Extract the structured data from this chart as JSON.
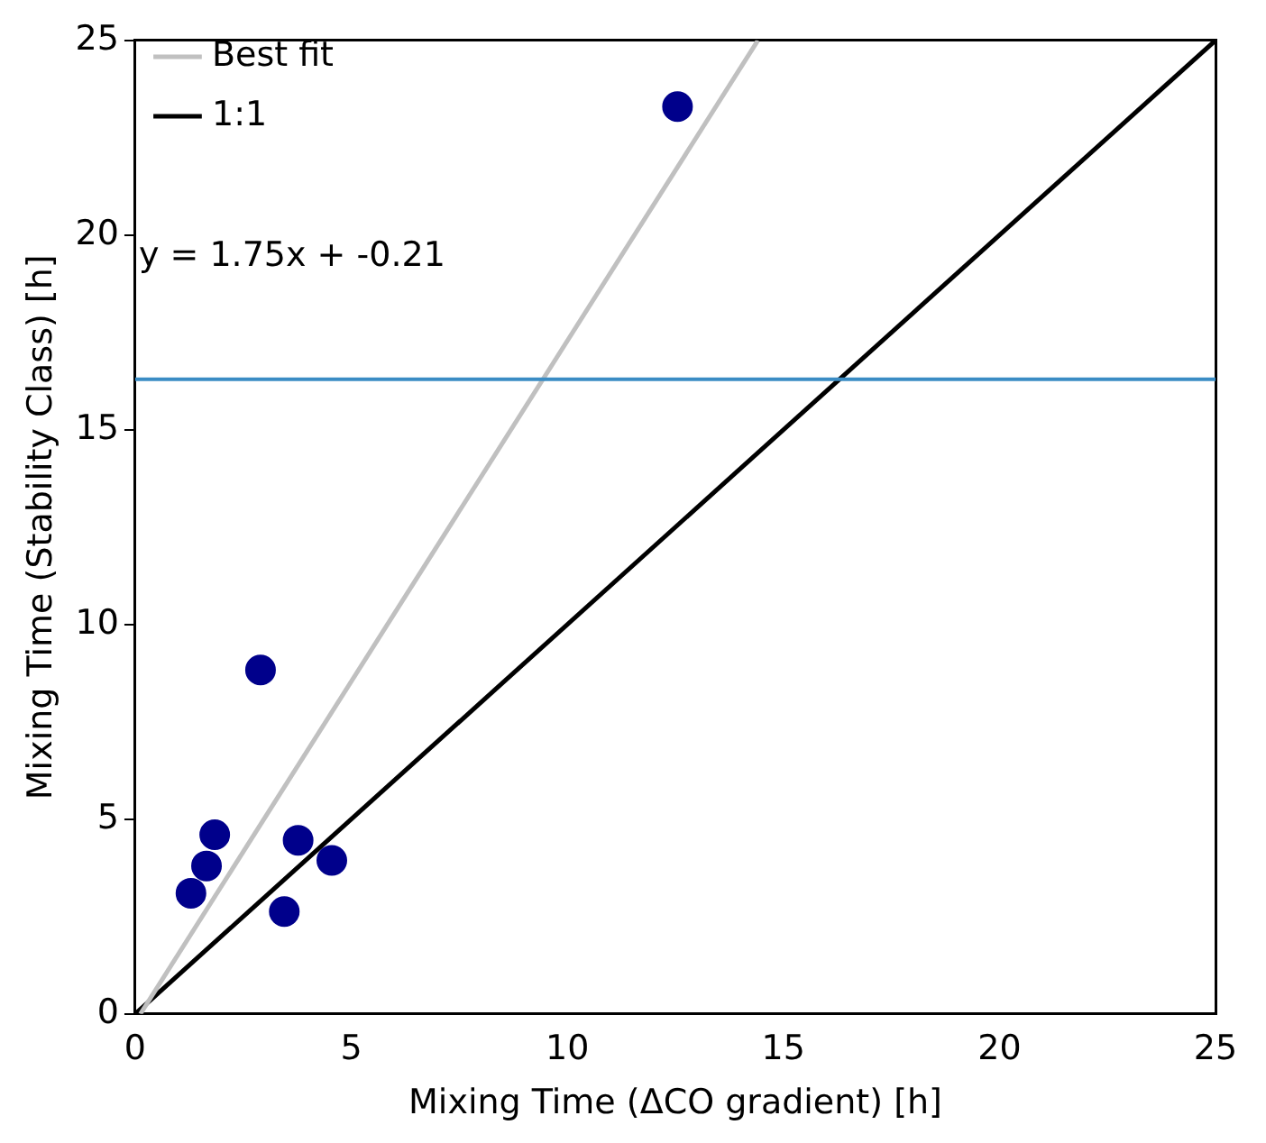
{
  "chart_data": {
    "type": "scatter",
    "xlabel": "Mixing Time (ΔCO gradient) [h]",
    "ylabel": "Mixing Time (Stability Class) [h]",
    "xlim": [
      0,
      25
    ],
    "ylim": [
      0,
      25
    ],
    "xticks": [
      0,
      5,
      10,
      15,
      20,
      25
    ],
    "yticks": [
      0,
      5,
      10,
      15,
      20,
      25
    ],
    "grid": false,
    "legend": "top left",
    "annotations": [
      "y = 1.75x + -0.21"
    ],
    "ref_lines": [
      {
        "axis": "y",
        "value": 16.3,
        "color": "#3a8cc4"
      }
    ],
    "series": [
      {
        "marker": "circle",
        "color": "#00008b",
        "x": [
          12.55,
          2.9,
          1.84,
          1.65,
          1.29,
          3.77,
          4.55,
          3.45
        ],
        "values": [
          23.3,
          8.83,
          4.6,
          3.8,
          3.1,
          4.46,
          3.94,
          2.63
        ]
      },
      {
        "type": "line",
        "marker": "none",
        "name": "Best fit",
        "color": "#c0c0c0",
        "x": [
          0.12,
          14.41
        ],
        "values": [
          0,
          25
        ]
      },
      {
        "type": "line",
        "marker": "none",
        "name": "1:1",
        "color": "#000000",
        "x": [
          0,
          25
        ],
        "values": [
          0,
          25
        ]
      }
    ]
  }
}
